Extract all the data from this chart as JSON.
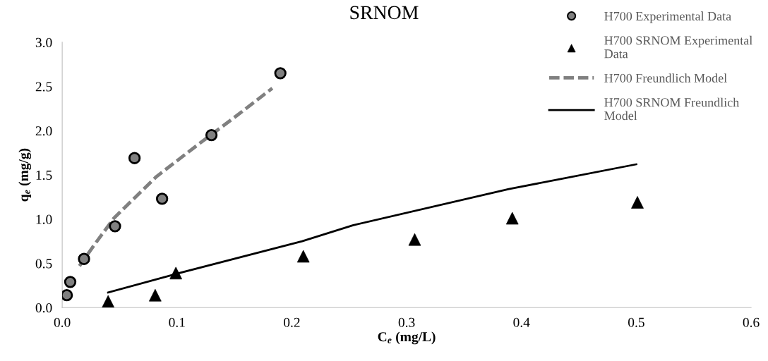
{
  "chart_data": {
    "type": "scatter",
    "title": "SRNOM",
    "xlabel": "C$_{e}$ (mg/L)",
    "ylabel": "q$_{e}$ (mg/g)",
    "xlim": [
      0,
      0.6
    ],
    "xticks": [
      {
        "value": 0,
        "label": "0.0"
      },
      0.1,
      0.2,
      0.3,
      0.4,
      0.5,
      0.6
    ],
    "ylim": [
      0,
      3
    ],
    "yticks": [
      {
        "value": 0,
        "label": "0.0"
      },
      0.5,
      {
        "value": 1,
        "label": "1.0"
      },
      1.5,
      {
        "value": 2,
        "label": "2.0"
      },
      2.5,
      {
        "value": 3,
        "label": "3.0"
      }
    ],
    "grid": false,
    "legend": "top right",
    "series": [
      {
        "name": "H700 Experimental Data",
        "marker": "circle",
        "color": "#808080",
        "x": [
          0.004,
          0.007,
          0.019,
          0.046,
          0.063,
          0.087,
          0.13,
          0.19
        ],
        "values": [
          0.14,
          0.29,
          0.55,
          0.92,
          1.69,
          1.23,
          1.95,
          2.65
        ]
      },
      {
        "name": "H700 SRNOM Experimental Data",
        "marker": "triangle",
        "color": "#000000",
        "x": [
          0.04,
          0.081,
          0.099,
          0.21,
          0.307,
          0.392,
          0.501
        ],
        "values": [
          0.07,
          0.14,
          0.39,
          0.58,
          0.77,
          1.01,
          1.19
        ]
      },
      {
        "name": "H700 Freundlich Model",
        "type": "line",
        "line_style": "dashed",
        "color": "#808080",
        "x": [
          0.015,
          0.028,
          0.045,
          0.082,
          0.119,
          0.149,
          0.183
        ],
        "values": [
          0.47,
          0.71,
          1.01,
          1.48,
          1.85,
          2.14,
          2.48
        ]
      },
      {
        "name": "H700 SRNOM Freundlich Model",
        "type": "line",
        "line_style": "solid",
        "color": "#000000",
        "x": [
          0.04,
          0.099,
          0.209,
          0.253,
          0.389,
          0.5
        ],
        "values": [
          0.17,
          0.38,
          0.75,
          0.93,
          1.34,
          1.62
        ]
      }
    ]
  }
}
